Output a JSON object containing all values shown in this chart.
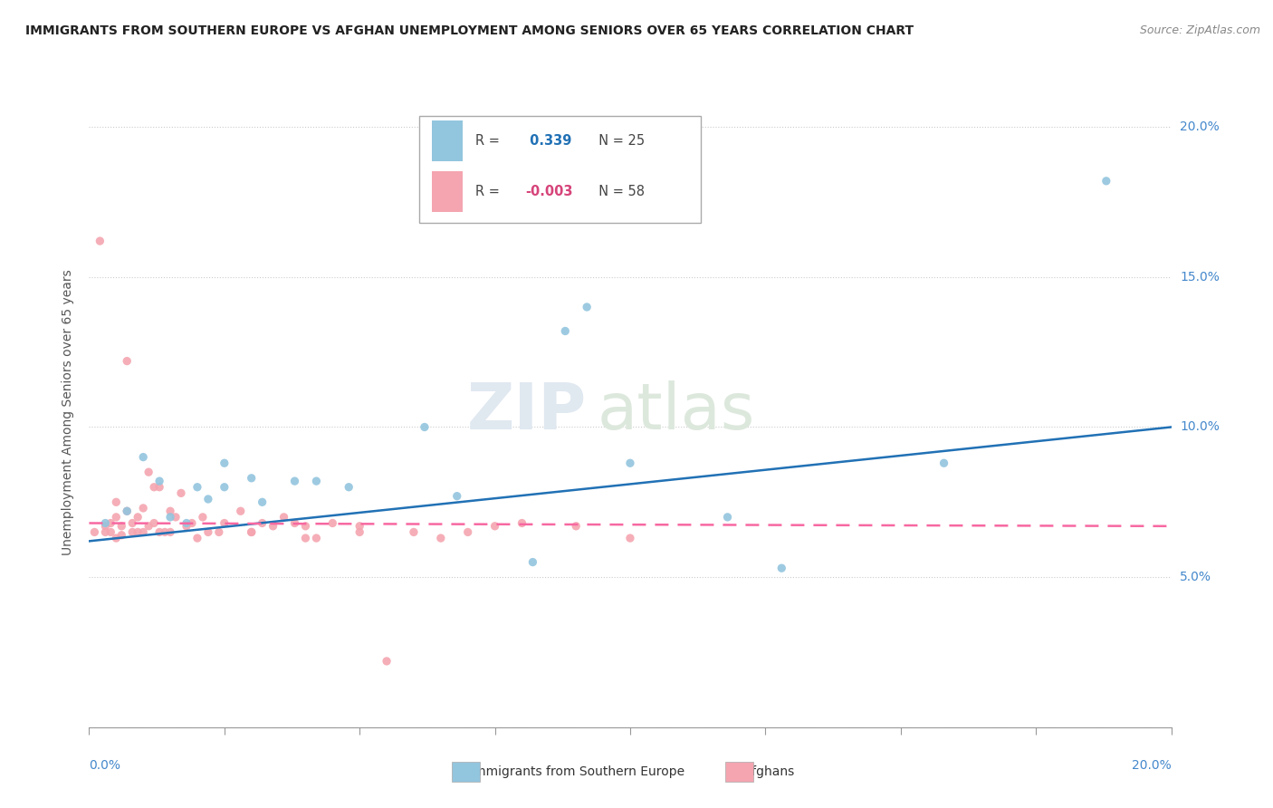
{
  "title": "IMMIGRANTS FROM SOUTHERN EUROPE VS AFGHAN UNEMPLOYMENT AMONG SENIORS OVER 65 YEARS CORRELATION CHART",
  "source": "Source: ZipAtlas.com",
  "ylabel": "Unemployment Among Seniors over 65 years",
  "xlim": [
    0.0,
    0.2
  ],
  "ylim": [
    0.0,
    0.21
  ],
  "legend_r1": "R = ",
  "legend_v1": " 0.339",
  "legend_n1": "N = 25",
  "legend_r2": "R = ",
  "legend_v2": "-0.003",
  "legend_n2": "N = 58",
  "blue_color": "#92c5de",
  "pink_color": "#f4a5b0",
  "line_blue": "#2171b5",
  "line_pink": "#f768a1",
  "watermark_zip": "ZIP",
  "watermark_atlas": "atlas",
  "blue_scatter_x": [
    0.003,
    0.007,
    0.01,
    0.013,
    0.015,
    0.018,
    0.02,
    0.022,
    0.025,
    0.025,
    0.03,
    0.032,
    0.038,
    0.042,
    0.048,
    0.062,
    0.068,
    0.082,
    0.088,
    0.092,
    0.1,
    0.118,
    0.128,
    0.158,
    0.188
  ],
  "blue_scatter_y": [
    0.068,
    0.072,
    0.09,
    0.082,
    0.07,
    0.068,
    0.08,
    0.076,
    0.088,
    0.08,
    0.083,
    0.075,
    0.082,
    0.082,
    0.08,
    0.1,
    0.077,
    0.055,
    0.132,
    0.14,
    0.088,
    0.07,
    0.053,
    0.088,
    0.182
  ],
  "pink_scatter_x": [
    0.001,
    0.002,
    0.003,
    0.003,
    0.004,
    0.004,
    0.005,
    0.005,
    0.005,
    0.006,
    0.006,
    0.007,
    0.007,
    0.008,
    0.008,
    0.009,
    0.009,
    0.01,
    0.01,
    0.011,
    0.011,
    0.012,
    0.012,
    0.013,
    0.013,
    0.014,
    0.015,
    0.015,
    0.016,
    0.017,
    0.018,
    0.019,
    0.02,
    0.021,
    0.022,
    0.024,
    0.025,
    0.028,
    0.03,
    0.032,
    0.034,
    0.036,
    0.038,
    0.04,
    0.042,
    0.045,
    0.05,
    0.055,
    0.06,
    0.065,
    0.07,
    0.075,
    0.08,
    0.09,
    0.1,
    0.05,
    0.04,
    0.03
  ],
  "pink_scatter_y": [
    0.065,
    0.162,
    0.067,
    0.065,
    0.068,
    0.065,
    0.063,
    0.07,
    0.075,
    0.064,
    0.067,
    0.072,
    0.122,
    0.065,
    0.068,
    0.07,
    0.065,
    0.073,
    0.065,
    0.067,
    0.085,
    0.08,
    0.068,
    0.065,
    0.08,
    0.065,
    0.072,
    0.065,
    0.07,
    0.078,
    0.067,
    0.068,
    0.063,
    0.07,
    0.065,
    0.065,
    0.068,
    0.072,
    0.065,
    0.068,
    0.067,
    0.07,
    0.068,
    0.067,
    0.063,
    0.068,
    0.067,
    0.022,
    0.065,
    0.063,
    0.065,
    0.067,
    0.068,
    0.067,
    0.063,
    0.065,
    0.063,
    0.065
  ],
  "blue_line_x": [
    0.0,
    0.2
  ],
  "blue_line_y": [
    0.062,
    0.1
  ],
  "pink_line_x": [
    0.0,
    0.2
  ],
  "pink_line_y": [
    0.068,
    0.067
  ]
}
